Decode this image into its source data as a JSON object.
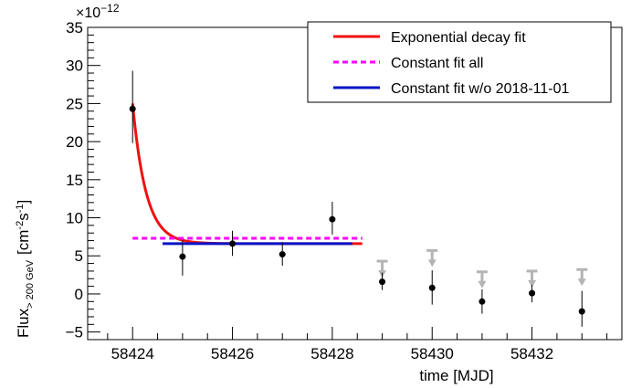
{
  "chart_data": {
    "type": "scatter",
    "title": "",
    "xlabel": "time [MJD]",
    "ylabel_main": "Flux",
    "ylabel_sub": "> 200 GeV",
    "ylabel_units": "[cm",
    "ylabel_exp1": "-2",
    "ylabel_mid": "s",
    "ylabel_exp2": "-1",
    "ylabel_close": "]",
    "y_multiplier_base": "×10",
    "y_multiplier_exp": "−12",
    "xlim": [
      58423.1,
      58433.8
    ],
    "ylim": [
      -6,
      35
    ],
    "x_ticks": [
      58424,
      58426,
      58428,
      58430,
      58432
    ],
    "y_ticks": [
      -5,
      0,
      5,
      10,
      15,
      20,
      25,
      30,
      35
    ],
    "y_tick_labels": [
      "−5",
      "0",
      "5",
      "10",
      "15",
      "20",
      "25",
      "30",
      "35"
    ],
    "grid": false,
    "legend_position": "top-right",
    "points": [
      {
        "x": 58424.0,
        "y": 24.3,
        "yerr_low": 4.5,
        "yerr_high": 5.0
      },
      {
        "x": 58425.0,
        "y": 4.9,
        "yerr_low": 2.5,
        "yerr_high": 2.2
      },
      {
        "x": 58426.0,
        "y": 6.6,
        "yerr_low": 1.6,
        "yerr_high": 1.7
      },
      {
        "x": 58427.0,
        "y": 5.2,
        "yerr_low": 1.5,
        "yerr_high": 1.6
      },
      {
        "x": 58428.0,
        "y": 9.8,
        "yerr_low": 2.0,
        "yerr_high": 2.3
      },
      {
        "x": 58429.0,
        "y": 1.6,
        "yerr_low": 1.1,
        "yerr_high": 1.2
      },
      {
        "x": 58430.0,
        "y": 0.8,
        "yerr_low": 2.2,
        "yerr_high": 2.3
      },
      {
        "x": 58431.0,
        "y": -1.0,
        "yerr_low": 1.6,
        "yerr_high": 1.6
      },
      {
        "x": 58432.0,
        "y": 0.1,
        "yerr_low": 1.2,
        "yerr_high": 1.1
      },
      {
        "x": 58433.0,
        "y": -2.3,
        "yerr_low": 2.0,
        "yerr_high": 2.7
      }
    ],
    "upper_limits": [
      {
        "x": 58429.0,
        "y": 4.3
      },
      {
        "x": 58430.0,
        "y": 5.7
      },
      {
        "x": 58431.0,
        "y": 2.9
      },
      {
        "x": 58432.0,
        "y": 3.0
      },
      {
        "x": 58433.0,
        "y": 3.2
      }
    ],
    "series": [
      {
        "name": "Exponential decay fit",
        "kind": "exp",
        "color": "#ee1111",
        "x_start": 58424.0,
        "x_end": 58428.6,
        "amplitude": 18.4,
        "tau": 0.27,
        "offset": 6.6
      },
      {
        "name": "Constant fit all",
        "kind": "const",
        "color": "#ff00ff",
        "dashed": true,
        "x_start": 58424.0,
        "x_end": 58428.6,
        "value": 7.3
      },
      {
        "name": "Constant fit w/o 2018-11-01",
        "kind": "const",
        "color": "#0a14c8",
        "dashed": false,
        "x_start": 58424.6,
        "x_end": 58428.4,
        "value": 6.6
      }
    ],
    "colors": {
      "points": "#000000",
      "upper_limits": "#b4b4b4",
      "axes": "#000000"
    }
  }
}
